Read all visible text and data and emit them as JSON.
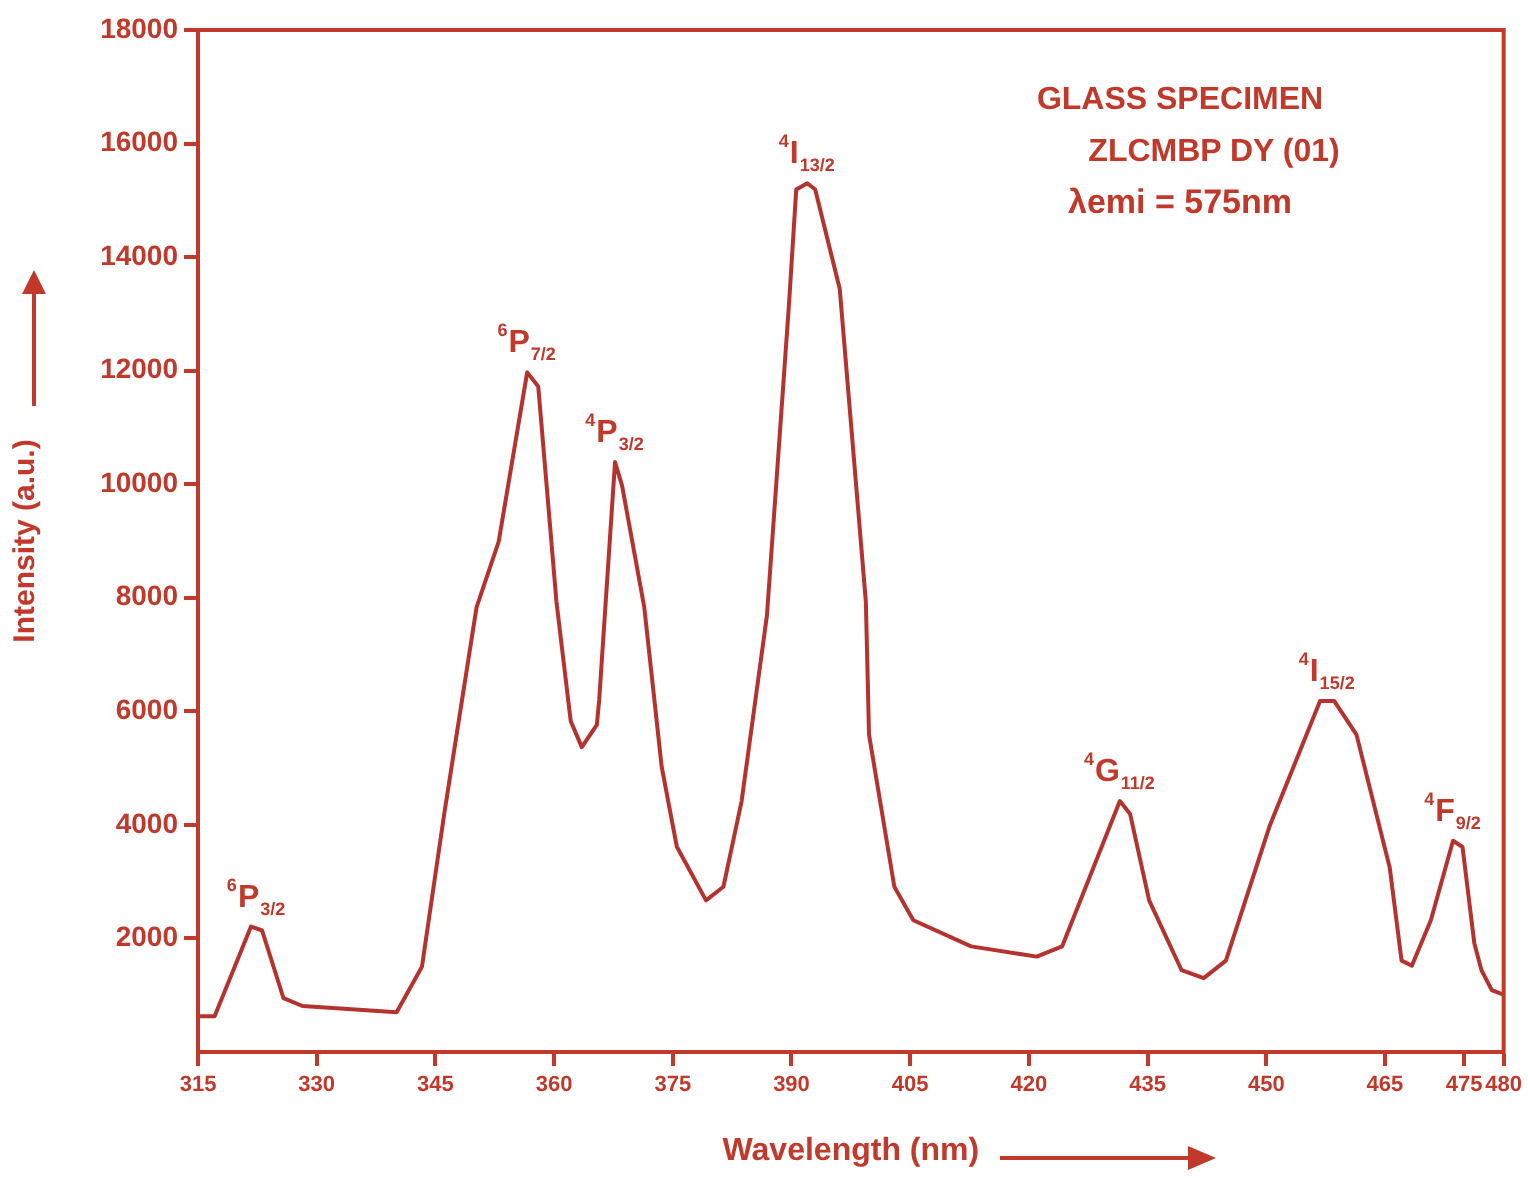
{
  "chart_data": {
    "type": "line",
    "xlabel": "Wavelength (nm)",
    "ylabel": "Intensity (a.u.)",
    "xlim": [
      315,
      480
    ],
    "xticks": [
      315,
      330,
      345,
      360,
      375,
      390,
      405,
      420,
      435,
      450,
      465,
      475,
      480
    ],
    "ylim": [
      0,
      18000
    ],
    "yticks": [
      2000,
      4000,
      6000,
      8000,
      10000,
      12000,
      14000,
      16000,
      18000
    ],
    "grid": false,
    "legend": false,
    "marker": "none",
    "line_style": "solid",
    "series": [
      {
        "color": "#b5332e",
        "x": [
          315,
          317.1,
          321.7,
          323.1,
          325.8,
          328.2,
          340.1,
          343.3,
          346.1,
          350.2,
          353,
          356.6,
          358,
          360.3,
          362.1,
          363.5,
          365.4,
          365.7,
          367.7,
          368.6,
          371.4,
          373.6,
          375.5,
          379.2,
          381.4,
          383.7,
          386.9,
          389.7,
          390.6,
          392,
          393,
          396.1,
          399.4,
          399.8,
          403,
          405.4,
          412.7,
          421,
          424.2,
          431.5,
          432.8,
          435.2,
          439.3,
          442.1,
          444.9,
          450.4,
          456.8,
          458.6,
          461.4,
          465.6,
          467.1,
          468.4,
          470.8,
          473.6,
          474.8,
          476.3,
          477.2,
          478.5,
          480
        ],
        "values": [
          630,
          630,
          2210,
          2140,
          950,
          810,
          700,
          1500,
          4180,
          7830,
          8990,
          11970,
          11720,
          7930,
          5830,
          5370,
          5760,
          6200,
          10390,
          9970,
          7830,
          5020,
          3620,
          2670,
          2910,
          4420,
          7690,
          13200,
          15190,
          15300,
          15190,
          13440,
          7930,
          5590,
          2910,
          2320,
          1860,
          1680,
          1860,
          4420,
          4190,
          2670,
          1440,
          1300,
          1610,
          3970,
          6180,
          6180,
          5590,
          3250,
          1610,
          1520,
          2320,
          3720,
          3610,
          1910,
          1440,
          1090,
          1010
        ]
      }
    ],
    "annotations": [
      {
        "text": "$^{6}$P$_{3/2}$",
        "x": 322.4,
        "y": 2210
      },
      {
        "text": "$^{6}$P$_{7/2}$",
        "x": 356.6,
        "y": 11970
      },
      {
        "text": "$^{4}$P$_{3/2}$",
        "x": 367.7,
        "y": 10390
      },
      {
        "text": "$^{4}$I$_{13/2}$",
        "x": 392,
        "y": 15300
      },
      {
        "text": "$^{4}$G$_{11/2}$",
        "x": 431.5,
        "y": 4420
      },
      {
        "text": "$^{4}$I$_{15/2}$",
        "x": 457.7,
        "y": 6180
      },
      {
        "text": "$^{4}$F$_{9/2}$",
        "x": 473.6,
        "y": 3720
      },
      "GLASS SPECIMEN",
      "ZLCMBP DY (01)",
      "λemi = 575nm"
    ]
  }
}
